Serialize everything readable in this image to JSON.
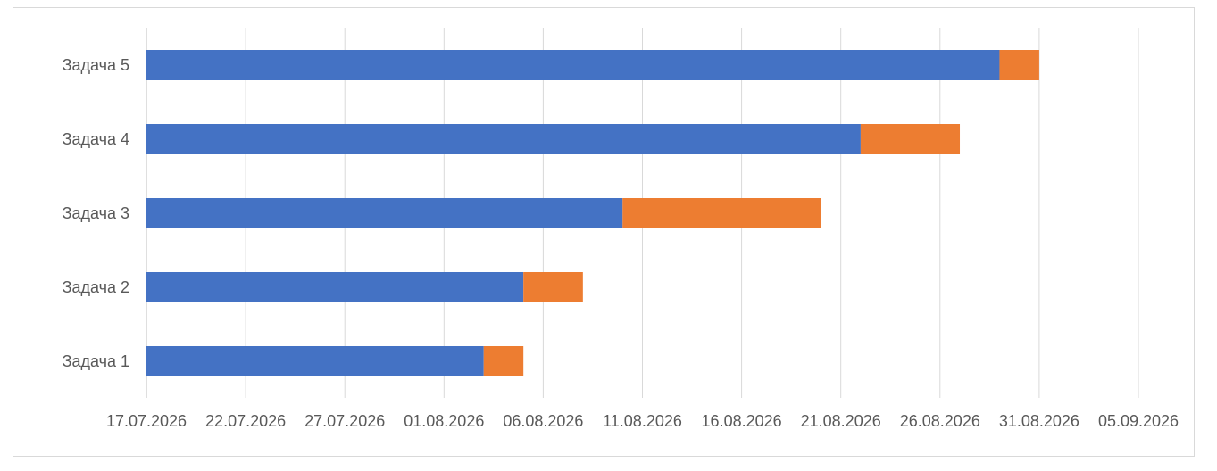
{
  "chart_data": {
    "type": "bar",
    "orientation": "horizontal",
    "stacked": true,
    "categories": [
      "Задача 1",
      "Задача 2",
      "Задача 3",
      "Задача 4",
      "Задача 5"
    ],
    "x_start": "17.07.2026",
    "xlim_days": [
      0,
      50
    ],
    "x_tick_labels": [
      "17.07.2026",
      "22.07.2026",
      "27.07.2026",
      "01.08.2026",
      "06.08.2026",
      "11.08.2026",
      "16.08.2026",
      "21.08.2026",
      "26.08.2026",
      "31.08.2026",
      "05.09.2026"
    ],
    "series": [
      {
        "start": "17.07.2026",
        "end": [
          "03.08.2026",
          "05.08.2026",
          "10.08.2026",
          "22.08.2026",
          "29.08.2026"
        ],
        "color": "#4472C4"
      },
      {
        "start": [
          "03.08.2026",
          "05.08.2026",
          "10.08.2026",
          "22.08.2026",
          "29.08.2026"
        ],
        "end": [
          "05.08.2026",
          "08.08.2026",
          "20.08.2026",
          "27.08.2026",
          "31.08.2026"
        ],
        "color": "#ED7D31"
      }
    ],
    "grid": "vertical",
    "legend": "none",
    "title": "",
    "xlabel": "",
    "ylabel": ""
  },
  "colors": {
    "gridline": "#d9d9d9",
    "axis": "#bfbfbf",
    "text": "#595959"
  }
}
